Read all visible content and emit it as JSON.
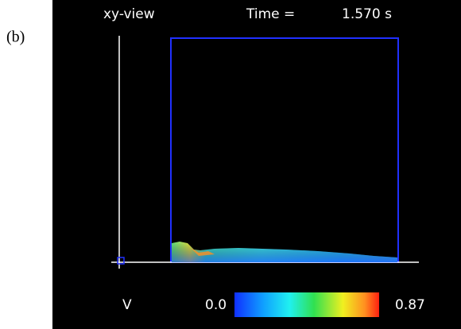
{
  "panel_label": "(b)",
  "header": {
    "view": "xy-view",
    "time_label": "Time =",
    "time_value": "1.570 s"
  },
  "colorbar": {
    "variable": "V",
    "min_label": "0.0",
    "max_label": "0.87"
  }
}
